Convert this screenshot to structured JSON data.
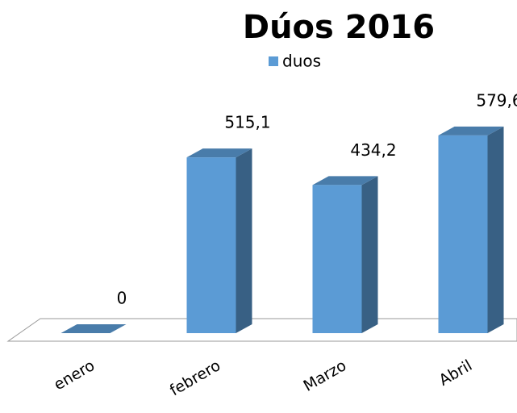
{
  "chart_data": {
    "type": "bar",
    "title": "Dúos 2016",
    "categories": [
      "enero",
      "febrero",
      "Marzo",
      "Abril"
    ],
    "series": [
      {
        "name": "duos",
        "color": "#5b9bd5",
        "values": [
          0,
          515.1,
          434.2,
          579.6
        ],
        "value_labels": [
          "0",
          "515,1",
          "434,2",
          "579,6"
        ]
      }
    ],
    "legend": "top"
  }
}
